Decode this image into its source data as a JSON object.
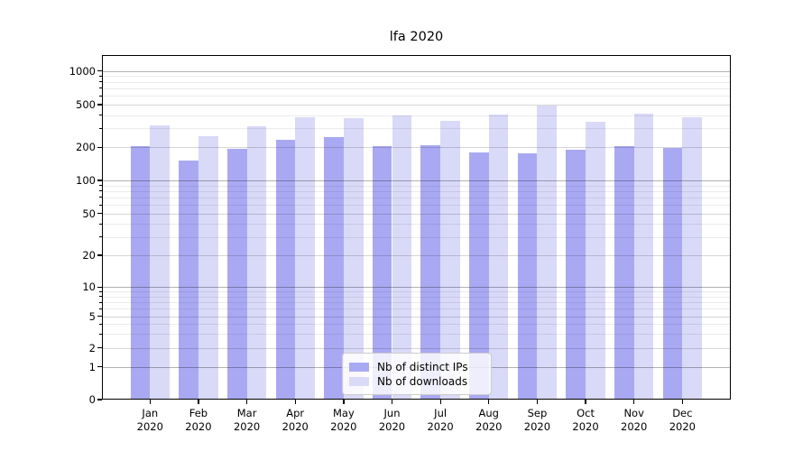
{
  "title": "lfa 2020",
  "legend": {
    "items": [
      {
        "label": "Nb of distinct IPs",
        "color": "#a9a9f3"
      },
      {
        "label": "Nb of downloads",
        "color": "#d9d9f8"
      }
    ]
  },
  "axes": {
    "y_tick_labels": [
      "0",
      "1",
      "2",
      "5",
      "10",
      "20",
      "50",
      "100",
      "200",
      "500",
      "1000"
    ],
    "x_ticks": [
      {
        "month": "Jan",
        "year": "2020"
      },
      {
        "month": "Feb",
        "year": "2020"
      },
      {
        "month": "Mar",
        "year": "2020"
      },
      {
        "month": "Apr",
        "year": "2020"
      },
      {
        "month": "May",
        "year": "2020"
      },
      {
        "month": "Jun",
        "year": "2020"
      },
      {
        "month": "Jul",
        "year": "2020"
      },
      {
        "month": "Aug",
        "year": "2020"
      },
      {
        "month": "Sep",
        "year": "2020"
      },
      {
        "month": "Oct",
        "year": "2020"
      },
      {
        "month": "Nov",
        "year": "2020"
      },
      {
        "month": "Dec",
        "year": "2020"
      }
    ]
  },
  "chart_data": {
    "type": "bar",
    "title": "lfa 2020",
    "categories": [
      "Jan 2020",
      "Feb 2020",
      "Mar 2020",
      "Apr 2020",
      "May 2020",
      "Jun 2020",
      "Jul 2020",
      "Aug 2020",
      "Sep 2020",
      "Oct 2020",
      "Nov 2020",
      "Dec 2020"
    ],
    "series": [
      {
        "name": "Nb of distinct IPs",
        "color": "#a9a9f3",
        "values": [
          206,
          152,
          193,
          237,
          247,
          206,
          208,
          180,
          176,
          191,
          204,
          198
        ]
      },
      {
        "name": "Nb of downloads",
        "color": "#d9d9f8",
        "values": [
          320,
          253,
          312,
          383,
          375,
          393,
          356,
          404,
          487,
          343,
          415,
          384
        ]
      }
    ],
    "xlabel": "",
    "ylabel": "",
    "yscale": "symlog",
    "y_ticks": [
      0,
      1,
      2,
      5,
      10,
      20,
      50,
      100,
      200,
      500,
      1000
    ],
    "ylim": [
      0,
      1400
    ],
    "grid": true,
    "legend_position": "lower center"
  }
}
